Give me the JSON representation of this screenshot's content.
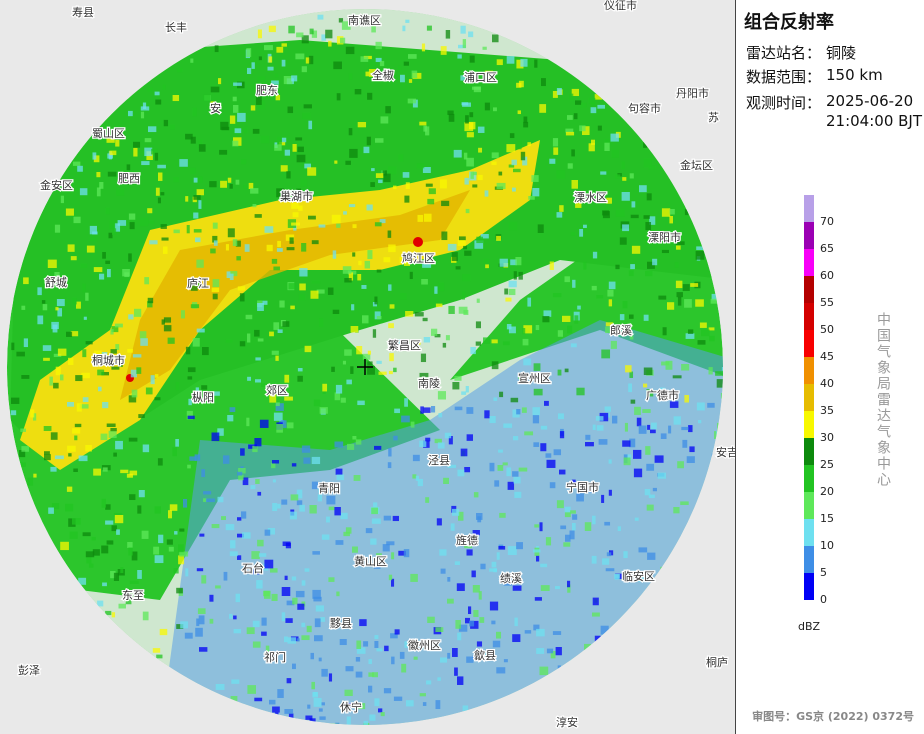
{
  "title": "组合反射率",
  "info": {
    "station_label": "雷达站名：",
    "station": "铜陵",
    "range_label": "数据范围：",
    "range": "150 km",
    "time_label": "观测时间：",
    "date": "2025-06-20",
    "time": "21:04:00 BJT"
  },
  "legend": {
    "levels": [
      0,
      5,
      10,
      15,
      20,
      25,
      30,
      35,
      40,
      45,
      50,
      55,
      60,
      65,
      70
    ],
    "colors": [
      "#0000f6",
      "#3e8ee6",
      "#6ee0f0",
      "#5ee85a",
      "#22c422",
      "#0d8a0d",
      "#f8f800",
      "#e6bc00",
      "#f09000",
      "#f80000",
      "#d40000",
      "#b40000",
      "#f800f8",
      "#9b00b4",
      "#b8a0e8"
    ],
    "unit": "dBZ"
  },
  "source": "中国气象局雷达气象中心",
  "approval": "审图号：GS京 (2022) 0372号",
  "places": [
    "寿县",
    "长丰",
    "南谯区",
    "仪征市",
    "全椒",
    "浦口区",
    "丹阳市",
    "肥东",
    "安",
    "苏",
    "句容市",
    "蜀山区",
    "金坛区",
    "肥西",
    "巢湖市",
    "溧水区",
    "金安区",
    "溧阳市",
    "舒城",
    "庐江",
    "鸠江区",
    "郎溪",
    "桐城市",
    "宣州区",
    "广德市",
    "枞阳",
    "郊区",
    "繁昌区",
    "南陵",
    "安吉",
    "宁国市",
    "泾县",
    "青阳",
    "绩溪",
    "临安区",
    "旌德",
    "东至",
    "黄山区",
    "石台",
    "黟县",
    "歙县",
    "祁门",
    "彭泽",
    "休宁",
    "淳安",
    "桐庐",
    "徽州区"
  ]
}
